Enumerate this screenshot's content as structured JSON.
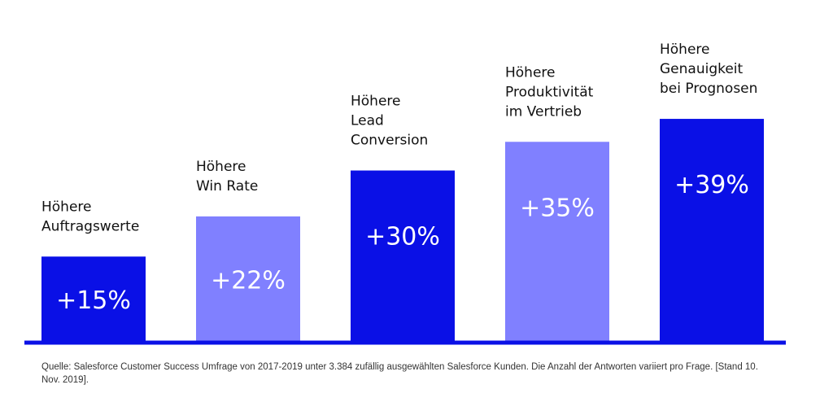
{
  "chart_data": {
    "type": "bar",
    "categories": [
      [
        "Höhere",
        "Auftragswerte"
      ],
      [
        "Höhere",
        "Win Rate"
      ],
      [
        "Höhere",
        "Lead",
        "Conversion"
      ],
      [
        "Höhere",
        "Produktivität",
        "im Vertrieb"
      ],
      [
        "Höhere",
        "Genauigkeit",
        "bei Prognosen"
      ]
    ],
    "values": [
      15,
      22,
      30,
      35,
      39
    ],
    "value_labels": [
      "+15%",
      "+22%",
      "+30%",
      "+35%",
      "+39%"
    ],
    "unit": "%",
    "bar_colors": [
      "#0a10e6",
      "#8080ff",
      "#0a10e6",
      "#8080ff",
      "#0a10e6"
    ],
    "baseline_color": "#0a10e6",
    "grid": false,
    "legend": "none",
    "title": "",
    "xlabel": "",
    "ylabel": ""
  },
  "footnote": {
    "text": "Quelle: Salesforce Customer Success Umfrage von 2017-2019 unter 3.384 zufällig ausgewählten Salesforce Kunden. Die Anzahl der Antworten variiert pro Frage. [Stand 10. Nov. 2019]."
  }
}
